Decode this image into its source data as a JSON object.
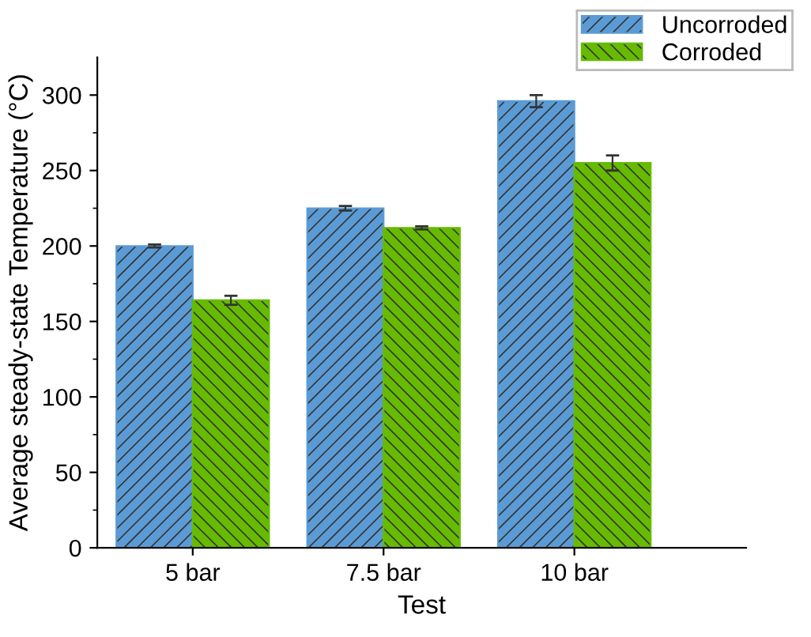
{
  "chart_data": {
    "type": "bar",
    "xlabel": "Test",
    "ylabel": "Average steady-state Temperature (°C)",
    "categories": [
      "5 bar",
      "7.5 bar",
      "10 bar"
    ],
    "series": [
      {
        "name": "Uncorroded",
        "color": "#5b9bd5",
        "values": [
          200,
          225,
          296
        ],
        "errors": [
          1,
          1.5,
          4
        ]
      },
      {
        "name": "Corroded",
        "color": "#66bb00",
        "values": [
          164,
          212,
          255
        ],
        "errors": [
          3,
          1,
          5
        ]
      }
    ],
    "ylim": [
      0,
      325
    ],
    "yticks": [
      0,
      50,
      100,
      150,
      200,
      250,
      300
    ],
    "grid": false,
    "legend": "top right"
  }
}
